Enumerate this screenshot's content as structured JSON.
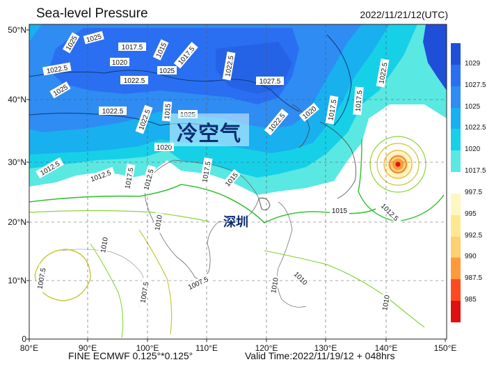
{
  "header": {
    "title": "Sea-level Pressure",
    "valid_time_utc": "2022/11/21/12(UTC)"
  },
  "footer": {
    "model": "FINE ECMWF 0.125°*0.125°",
    "valid_time": "Valid Time:2022/11/19/12 + 048hrs"
  },
  "annotations": {
    "callout": "冷空气",
    "city": "深圳"
  },
  "axes": {
    "lat_labels": [
      "50°N",
      "40°N",
      "30°N",
      "20°N",
      "10°N",
      "0"
    ],
    "lon_labels": [
      "80°E",
      "90°E",
      "100°E",
      "110°E",
      "120°E",
      "130°E",
      "140°E",
      "150°E"
    ]
  },
  "colorbar": {
    "levels": [
      "1029",
      "1027.5",
      "1025",
      "1022.5",
      "1020",
      "1017.5",
      "997.5",
      "995",
      "992.5",
      "990",
      "987.5",
      "985"
    ],
    "colors": [
      "#1f4fd8",
      "#2a6ff2",
      "#2f8cf2",
      "#19b0ef",
      "#16d0e8",
      "#5ae8e2",
      "#ffffff",
      "#fff7c0",
      "#ffe890",
      "#ffd070",
      "#ff9a3c",
      "#ff4a20",
      "#e01010"
    ]
  },
  "isobar_labels": [
    "1025",
    "1025",
    "1017.5",
    "1015",
    "1020",
    "1017.5",
    "1022.5",
    "1022.5",
    "1025",
    "1027.5",
    "1022.5",
    "1025",
    "1025",
    "1020",
    "1017.5",
    "1017.5",
    "1022.5",
    "1022.5",
    "1022.5",
    "1015",
    "1022.5",
    "1020",
    "1012.5",
    "1012.5",
    "1017.5",
    "1012.5",
    "1017.5",
    "1015",
    "1015",
    "1012.5",
    "1010",
    "1010",
    "1007.5",
    "1007.5",
    "1007.5",
    "1010",
    "1010",
    "1010"
  ]
}
